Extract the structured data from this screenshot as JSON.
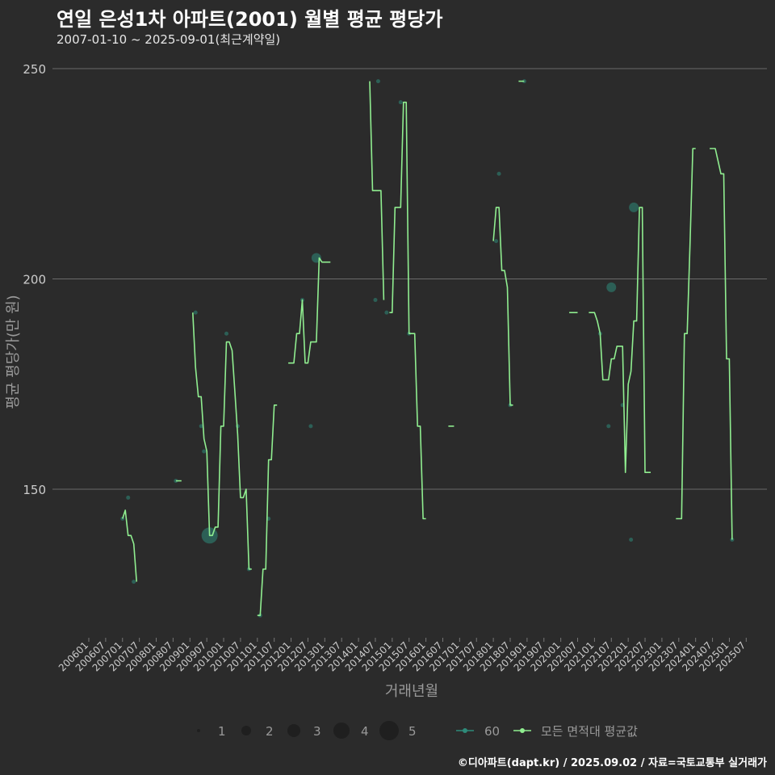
{
  "header": {
    "title": "연일 은성1차 아파트(2001) 월별 평균 평당가",
    "subtitle": "2007-01-10 ~ 2025-09-01(최근계약일)"
  },
  "footer": {
    "source": "©디아파트(dapt.kr) / 2025.09.02 / 자료=국토교통부 실거래가"
  },
  "colors": {
    "background": "#2b2b2b",
    "grid": "#6a6a6a",
    "line": "#90ee90",
    "points": "#2e8b7a",
    "text": "#cccccc"
  },
  "legend": {
    "size_values": [
      "1",
      "2",
      "3",
      "4",
      "5"
    ],
    "series_60": "60",
    "series_avg": "모든 면적대 평균값"
  },
  "chart_data": {
    "type": "line",
    "title": "연일 은성1차 아파트(2001) 월별 평균 평당가",
    "xlabel": "거래년월",
    "ylabel": "평균 평당가(만 원)",
    "ylim": [
      114,
      251
    ],
    "yticks": [
      150,
      200,
      250
    ],
    "x_start": "2006-01",
    "x_end": "2025-09",
    "xtick_labels": [
      "200601",
      "200607",
      "200701",
      "200707",
      "200801",
      "200807",
      "200901",
      "200907",
      "201001",
      "201007",
      "201101",
      "201107",
      "201201",
      "201207",
      "201301",
      "201307",
      "201401",
      "201407",
      "201501",
      "201507",
      "201601",
      "201607",
      "201701",
      "201707",
      "201801",
      "201807",
      "201901",
      "201907",
      "202001",
      "202007",
      "202101",
      "202107",
      "202201",
      "202207",
      "202301",
      "202307",
      "202401",
      "202407",
      "202501",
      "202507"
    ],
    "series": [
      {
        "name": "모든 면적대 평균값",
        "segments": [
          [
            [
              12,
              143
            ],
            [
              13,
              145
            ],
            [
              14,
              139
            ],
            [
              15,
              139
            ],
            [
              16,
              137
            ],
            [
              17,
              128
            ]
          ],
          [
            [
              31,
              152
            ],
            [
              33,
              152
            ]
          ],
          [
            [
              37,
              192
            ],
            [
              38,
              179
            ],
            [
              39,
              172
            ],
            [
              40,
              172
            ],
            [
              41,
              162
            ],
            [
              42,
              159
            ],
            [
              43,
              139
            ],
            [
              44,
              139
            ],
            [
              45,
              141
            ],
            [
              46,
              141
            ],
            [
              47,
              165
            ],
            [
              48,
              165
            ],
            [
              49,
              185
            ],
            [
              50,
              185
            ],
            [
              51,
              183
            ],
            [
              52,
              173
            ],
            [
              53,
              163
            ],
            [
              54,
              148
            ],
            [
              55,
              148
            ],
            [
              56,
              150
            ],
            [
              57,
              131
            ],
            [
              58,
              131
            ]
          ],
          [
            [
              60,
              120
            ],
            [
              61,
              120
            ],
            [
              62,
              131
            ],
            [
              63,
              131
            ],
            [
              64,
              157
            ],
            [
              65,
              157
            ],
            [
              66,
              170
            ],
            [
              67,
              170
            ]
          ],
          [
            [
              71,
              180
            ],
            [
              73,
              180
            ],
            [
              74,
              187
            ],
            [
              75,
              187
            ],
            [
              76,
              195
            ],
            [
              77,
              180
            ],
            [
              78,
              180
            ],
            [
              79,
              185
            ],
            [
              80,
              185
            ],
            [
              81,
              185
            ],
            [
              82,
              205
            ],
            [
              83,
              204
            ],
            [
              84,
              204
            ],
            [
              86,
              204
            ]
          ],
          [
            [
              100,
              247
            ],
            [
              101,
              221
            ],
            [
              102,
              221
            ],
            [
              103,
              221
            ],
            [
              104,
              221
            ],
            [
              105,
              195
            ]
          ],
          [
            [
              107,
              192
            ],
            [
              108,
              192
            ],
            [
              109,
              217
            ],
            [
              110,
              217
            ],
            [
              111,
              217
            ],
            [
              112,
              242
            ],
            [
              113,
              242
            ],
            [
              114,
              187
            ],
            [
              115,
              187
            ],
            [
              116,
              187
            ],
            [
              117,
              165
            ],
            [
              118,
              165
            ],
            [
              119,
              143
            ],
            [
              120,
              143
            ]
          ],
          [
            [
              128,
              165
            ],
            [
              130,
              165
            ]
          ],
          [
            [
              144,
              209
            ],
            [
              145,
              217
            ],
            [
              146,
              217
            ],
            [
              147,
              202
            ],
            [
              148,
              202
            ],
            [
              149,
              198
            ],
            [
              150,
              170
            ],
            [
              151,
              170
            ]
          ],
          [
            [
              153,
              247
            ],
            [
              155,
              247
            ]
          ],
          [
            [
              171,
              192
            ],
            [
              174,
              192
            ]
          ],
          [
            [
              178,
              192
            ],
            [
              180,
              192
            ],
            [
              181,
              190
            ],
            [
              182,
              187
            ],
            [
              183,
              176
            ],
            [
              184,
              176
            ],
            [
              185,
              176
            ],
            [
              186,
              181
            ],
            [
              187,
              181
            ],
            [
              188,
              184
            ],
            [
              189,
              184
            ],
            [
              190,
              184
            ],
            [
              191,
              154
            ],
            [
              192,
              175
            ],
            [
              193,
              178
            ],
            [
              194,
              190
            ],
            [
              195,
              190
            ],
            [
              196,
              217
            ],
            [
              197,
              217
            ],
            [
              198,
              154
            ],
            [
              199,
              154
            ],
            [
              200,
              154
            ]
          ],
          [
            [
              209,
              143
            ],
            [
              211,
              143
            ],
            [
              212,
              187
            ],
            [
              213,
              187
            ],
            [
              214,
              208
            ],
            [
              215,
              231
            ],
            [
              216,
              231
            ]
          ],
          [
            [
              221,
              231
            ],
            [
              223,
              231
            ],
            [
              224,
              228
            ],
            [
              225,
              225
            ],
            [
              226,
              225
            ],
            [
              227,
              181
            ],
            [
              228,
              181
            ],
            [
              229,
              138
            ]
          ]
        ]
      },
      {
        "name": "60",
        "points": [
          [
            12,
            143,
            1
          ],
          [
            14,
            148,
            1
          ],
          [
            16,
            128,
            1
          ],
          [
            31,
            152,
            1
          ],
          [
            38,
            192,
            1
          ],
          [
            41,
            159,
            1
          ],
          [
            40,
            165,
            1
          ],
          [
            43,
            139,
            4
          ],
          [
            49,
            187,
            1
          ],
          [
            53,
            165,
            1
          ],
          [
            57,
            131,
            1
          ],
          [
            61,
            120,
            1
          ],
          [
            64,
            143,
            1
          ],
          [
            76,
            195,
            1
          ],
          [
            79,
            165,
            1
          ],
          [
            81,
            205,
            2
          ],
          [
            102,
            195,
            1
          ],
          [
            103,
            247,
            1
          ],
          [
            106,
            192,
            1
          ],
          [
            111,
            242,
            1
          ],
          [
            114,
            187,
            1
          ],
          [
            145,
            209,
            1
          ],
          [
            146,
            225,
            1
          ],
          [
            150,
            170,
            1
          ],
          [
            155,
            247,
            1
          ],
          [
            186,
            198,
            2
          ],
          [
            182,
            187,
            1
          ],
          [
            185,
            165,
            1
          ],
          [
            190,
            170,
            1
          ],
          [
            194,
            217,
            2
          ],
          [
            193,
            138,
            1
          ],
          [
            229,
            138,
            1
          ]
        ]
      }
    ]
  }
}
